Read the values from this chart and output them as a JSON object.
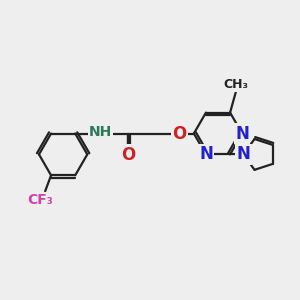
{
  "bg_color": "#eeeeee",
  "bond_color": "#222222",
  "bond_width": 1.6,
  "atom_colors": {
    "N": "#2222cc",
    "O": "#cc2222",
    "F": "#cc44aa",
    "NH": "#2a7a5a",
    "C": "#222222"
  },
  "figsize": [
    3.0,
    3.0
  ],
  "dpi": 100
}
